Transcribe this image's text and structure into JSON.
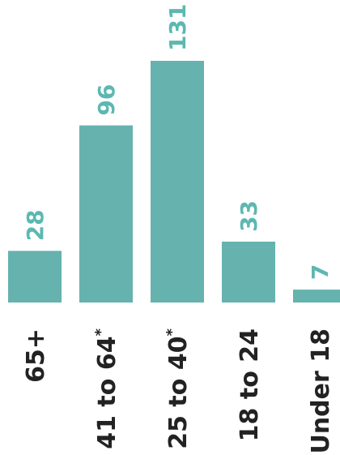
{
  "chart_data": {
    "type": "bar",
    "categories": [
      "65+",
      "41 to 64",
      "25 to 40",
      "18 to 24",
      "Under 18"
    ],
    "category_marks": [
      "",
      "*",
      "*",
      "",
      ""
    ],
    "values": [
      28,
      96,
      131,
      33,
      7
    ],
    "value_labels": [
      "28",
      "96",
      "131",
      "33",
      "7"
    ],
    "title": "",
    "xlabel": "",
    "ylabel": "",
    "ylim": [
      0,
      131
    ],
    "grid": false,
    "legend": "none",
    "bar_color": "#66b2ae",
    "label_color": "#5cb8b1",
    "text_color": "#222222"
  }
}
